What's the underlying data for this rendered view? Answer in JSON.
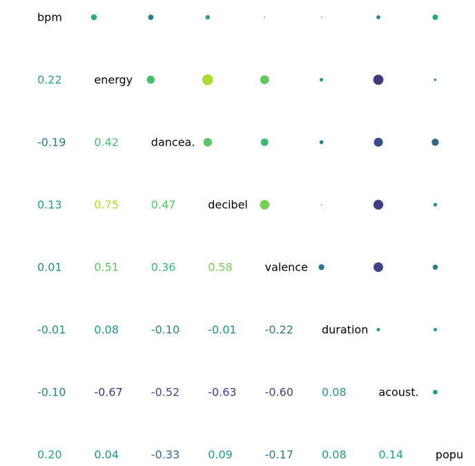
{
  "chart_data": {
    "type": "heatmap",
    "variables": [
      "bpm",
      "energy",
      "dancea.",
      "decibel",
      "valence",
      "duration",
      "acoust.",
      "popu"
    ],
    "lower_labels": [
      [
        "",
        "",
        "",
        "",
        "",
        "",
        "",
        ""
      ],
      [
        "0.22",
        "",
        "",
        "",
        "",
        "",
        "",
        ""
      ],
      [
        "-0.19",
        "0.42",
        "",
        "",
        "",
        "",
        "",
        ""
      ],
      [
        "0.13",
        "0.75",
        "0.47",
        "",
        "",
        "",
        "",
        ""
      ],
      [
        "0.01",
        "0.51",
        "0.36",
        "0.58",
        "",
        "",
        "",
        ""
      ],
      [
        "-0.01",
        "0.08",
        "-0.10",
        "-0.01",
        "-0.22",
        "",
        "",
        ""
      ],
      [
        "-0.10",
        "-0.67",
        "-0.52",
        "-0.63",
        "-0.60",
        "0.08",
        "",
        ""
      ],
      [
        "0.20",
        "0.04",
        "-0.33",
        "0.09",
        "-0.17",
        "0.08",
        "0.14",
        ""
      ]
    ],
    "matrix": [
      [
        1,
        0.22,
        -0.19,
        0.13,
        0.01,
        -0.01,
        -0.1,
        0.2
      ],
      [
        0.22,
        1,
        0.42,
        0.75,
        0.51,
        0.08,
        -0.67,
        0.04
      ],
      [
        -0.19,
        0.42,
        1,
        0.47,
        0.36,
        -0.1,
        -0.52,
        -0.33
      ],
      [
        0.13,
        0.75,
        0.47,
        1,
        0.58,
        -0.01,
        -0.63,
        0.09
      ],
      [
        0.01,
        0.51,
        0.36,
        0.58,
        1,
        -0.22,
        -0.6,
        -0.17
      ],
      [
        -0.01,
        0.08,
        -0.1,
        -0.01,
        -0.22,
        1,
        0.08,
        0.08
      ],
      [
        -0.1,
        -0.67,
        -0.52,
        -0.63,
        -0.6,
        0.08,
        1,
        0.14
      ],
      [
        0.2,
        0.04,
        -0.33,
        0.09,
        -0.17,
        0.08,
        0.14,
        1
      ]
    ],
    "value_range": [
      -1,
      1
    ],
    "grid": false,
    "colors": {
      "colormap": [
        "#440154",
        "#482878",
        "#3e4989",
        "#31688e",
        "#26828e",
        "#1f9e89",
        "#35b779",
        "#6ece58",
        "#b5de2b",
        "#fde725"
      ],
      "label_text": "#000000",
      "background": "#ffffff"
    }
  }
}
